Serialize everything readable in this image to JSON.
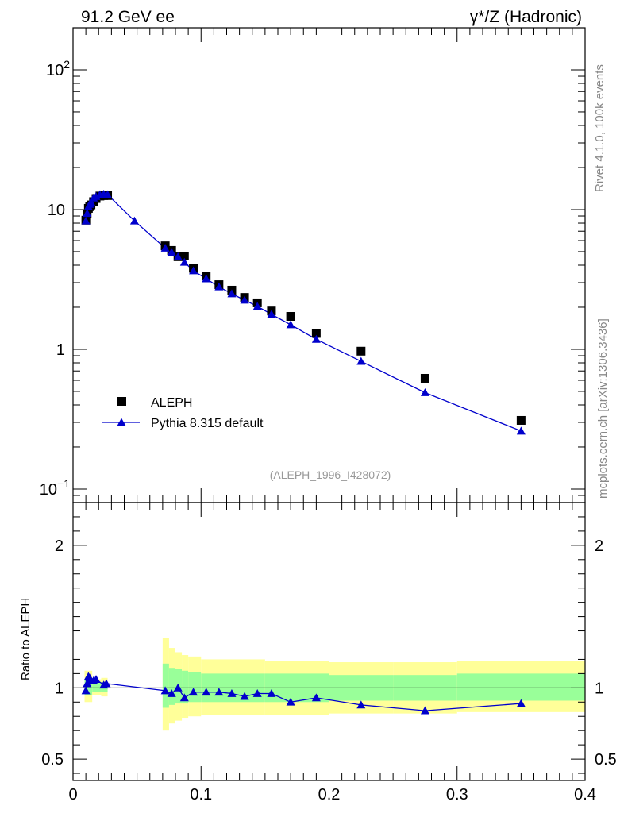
{
  "header": {
    "left": "91.2 GeV ee",
    "right": "γ*/Z (Hadronic)"
  },
  "side_texts": {
    "rivet": "Rivet 4.1.0,  100k events",
    "mcplots": "mcplots.cern.ch [arXiv:1306.3436]"
  },
  "analysis_label": "(ALEPH_1996_I428072)",
  "colors": {
    "mc": "#0000cc",
    "data": "#000000",
    "band_inner": "#99ff99",
    "band_outer": "#ffff99"
  },
  "chart_data": [
    {
      "type": "scatter",
      "panel": "main",
      "yscale": "log",
      "xlim": [
        0,
        0.4
      ],
      "ylim": [
        0.08,
        200
      ],
      "yticks": [
        {
          "v": 0.1,
          "label": "10",
          "exp": "−1"
        },
        {
          "v": 1,
          "label": "1"
        },
        {
          "v": 10,
          "label": "10"
        },
        {
          "v": 100,
          "label": "10",
          "exp": "2"
        }
      ],
      "legend": [
        {
          "label": "ALEPH",
          "marker": "square"
        },
        {
          "label": "Pythia 8.315 default",
          "marker": "triangle-line"
        }
      ],
      "series": [
        {
          "name": "ALEPH",
          "x": [
            0.01,
            0.011,
            0.012,
            0.013,
            0.014,
            0.016,
            0.018,
            0.021,
            0.024,
            0.027,
            0.072,
            0.077,
            0.082,
            0.087,
            0.094,
            0.104,
            0.114,
            0.124,
            0.134,
            0.144,
            0.155,
            0.17,
            0.19,
            0.225,
            0.275,
            0.35
          ],
          "y": [
            8.4,
            9.3,
            10.2,
            10.5,
            10.8,
            11.4,
            12.0,
            12.5,
            12.6,
            12.6,
            5.5,
            5.1,
            4.6,
            4.65,
            3.8,
            3.35,
            2.9,
            2.65,
            2.35,
            2.15,
            1.88,
            1.72,
            1.3,
            0.97,
            0.62,
            0.31
          ]
        },
        {
          "name": "Pythia 8.315 default",
          "x": [
            0.01,
            0.011,
            0.012,
            0.013,
            0.014,
            0.016,
            0.018,
            0.021,
            0.024,
            0.027,
            0.048,
            0.072,
            0.077,
            0.082,
            0.087,
            0.094,
            0.104,
            0.114,
            0.124,
            0.134,
            0.144,
            0.155,
            0.17,
            0.19,
            0.225,
            0.275,
            0.35
          ],
          "y": [
            8.3,
            9.4,
            10.5,
            10.9,
            11.3,
            12.1,
            12.4,
            12.8,
            12.9,
            12.8,
            8.3,
            5.3,
            4.95,
            4.6,
            4.2,
            3.65,
            3.2,
            2.8,
            2.5,
            2.25,
            2.03,
            1.78,
            1.5,
            1.18,
            0.82,
            0.49,
            0.26
          ]
        }
      ]
    },
    {
      "type": "line",
      "panel": "ratio",
      "ylabel": "Ratio to ALEPH",
      "xlim": [
        0,
        0.4
      ],
      "ylim": [
        0.35,
        2.3
      ],
      "yticks": [
        0.5,
        1,
        2
      ],
      "xticks": [
        "0",
        "0.1",
        "0.2",
        "0.3",
        "0.4"
      ],
      "bands": [
        {
          "x0": 0.009,
          "x1": 0.015,
          "inner": [
            0.95,
            1.06
          ],
          "outer": [
            0.9,
            1.12
          ]
        },
        {
          "x0": 0.015,
          "x1": 0.022,
          "inner": [
            0.97,
            1.04
          ],
          "outer": [
            0.95,
            1.06
          ]
        },
        {
          "x0": 0.022,
          "x1": 0.027,
          "inner": [
            0.97,
            1.04
          ],
          "outer": [
            0.94,
            1.07
          ]
        },
        {
          "x0": 0.07,
          "x1": 0.075,
          "inner": [
            0.86,
            1.17
          ],
          "outer": [
            0.7,
            1.35
          ]
        },
        {
          "x0": 0.075,
          "x1": 0.08,
          "inner": [
            0.88,
            1.14
          ],
          "outer": [
            0.75,
            1.28
          ]
        },
        {
          "x0": 0.08,
          "x1": 0.085,
          "inner": [
            0.89,
            1.13
          ],
          "outer": [
            0.77,
            1.25
          ]
        },
        {
          "x0": 0.085,
          "x1": 0.09,
          "inner": [
            0.89,
            1.12
          ],
          "outer": [
            0.79,
            1.23
          ]
        },
        {
          "x0": 0.09,
          "x1": 0.1,
          "inner": [
            0.9,
            1.11
          ],
          "outer": [
            0.8,
            1.22
          ]
        },
        {
          "x0": 0.1,
          "x1": 0.15,
          "inner": [
            0.9,
            1.1
          ],
          "outer": [
            0.81,
            1.2
          ]
        },
        {
          "x0": 0.15,
          "x1": 0.16,
          "inner": [
            0.9,
            1.1
          ],
          "outer": [
            0.81,
            1.19
          ]
        },
        {
          "x0": 0.16,
          "x1": 0.2,
          "inner": [
            0.9,
            1.1
          ],
          "outer": [
            0.81,
            1.19
          ]
        },
        {
          "x0": 0.2,
          "x1": 0.25,
          "inner": [
            0.91,
            1.09
          ],
          "outer": [
            0.82,
            1.18
          ]
        },
        {
          "x0": 0.25,
          "x1": 0.3,
          "inner": [
            0.91,
            1.09
          ],
          "outer": [
            0.82,
            1.18
          ]
        },
        {
          "x0": 0.3,
          "x1": 0.4,
          "inner": [
            0.91,
            1.1
          ],
          "outer": [
            0.83,
            1.19
          ]
        }
      ],
      "series": [
        {
          "name": "Pythia 8.315 default",
          "x": [
            0.01,
            0.011,
            0.012,
            0.013,
            0.014,
            0.016,
            0.018,
            0.024,
            0.026,
            0.072,
            0.077,
            0.082,
            0.087,
            0.094,
            0.104,
            0.114,
            0.124,
            0.134,
            0.144,
            0.155,
            0.17,
            0.19,
            0.225,
            0.275,
            0.35
          ],
          "y": [
            0.98,
            1.03,
            1.08,
            1.07,
            1.05,
            1.05,
            1.06,
            1.02,
            1.03,
            0.98,
            0.96,
            1.0,
            0.93,
            0.97,
            0.97,
            0.97,
            0.96,
            0.94,
            0.96,
            0.96,
            0.9,
            0.93,
            0.88,
            0.84,
            0.89
          ]
        }
      ]
    }
  ]
}
